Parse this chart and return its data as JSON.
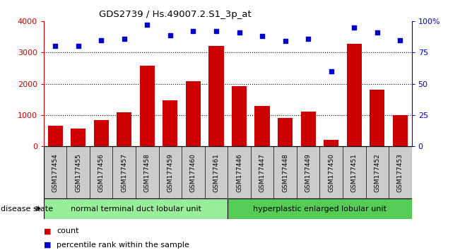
{
  "title": "GDS2739 / Hs.49007.2.S1_3p_at",
  "samples": [
    "GSM177454",
    "GSM177455",
    "GSM177456",
    "GSM177457",
    "GSM177458",
    "GSM177459",
    "GSM177460",
    "GSM177461",
    "GSM177446",
    "GSM177447",
    "GSM177448",
    "GSM177449",
    "GSM177450",
    "GSM177451",
    "GSM177452",
    "GSM177453"
  ],
  "counts": [
    650,
    560,
    830,
    1080,
    2580,
    1480,
    2080,
    3200,
    1930,
    1280,
    900,
    1100,
    200,
    3280,
    1820,
    1000
  ],
  "percentiles": [
    80,
    80,
    85,
    86,
    97,
    89,
    92,
    92,
    91,
    88,
    84,
    86,
    60,
    95,
    91,
    85
  ],
  "group1_label": "normal terminal duct lobular unit",
  "group2_label": "hyperplastic enlarged lobular unit",
  "group1_count": 8,
  "group2_count": 8,
  "ylim_left": [
    0,
    4000
  ],
  "ylim_right": [
    0,
    100
  ],
  "yticks_left": [
    0,
    1000,
    2000,
    3000,
    4000
  ],
  "yticks_right": [
    0,
    25,
    50,
    75,
    100
  ],
  "ytick_labels_right": [
    "0",
    "25",
    "50",
    "75",
    "100%"
  ],
  "bar_color": "#cc0000",
  "dot_color": "#0000cc",
  "group1_color": "#99ee99",
  "group2_color": "#55cc55",
  "legend_count_color": "#cc0000",
  "legend_dot_color": "#0000cc",
  "disease_state_label": "disease state",
  "gray_box_color": "#cccccc",
  "white_bg": "#ffffff"
}
